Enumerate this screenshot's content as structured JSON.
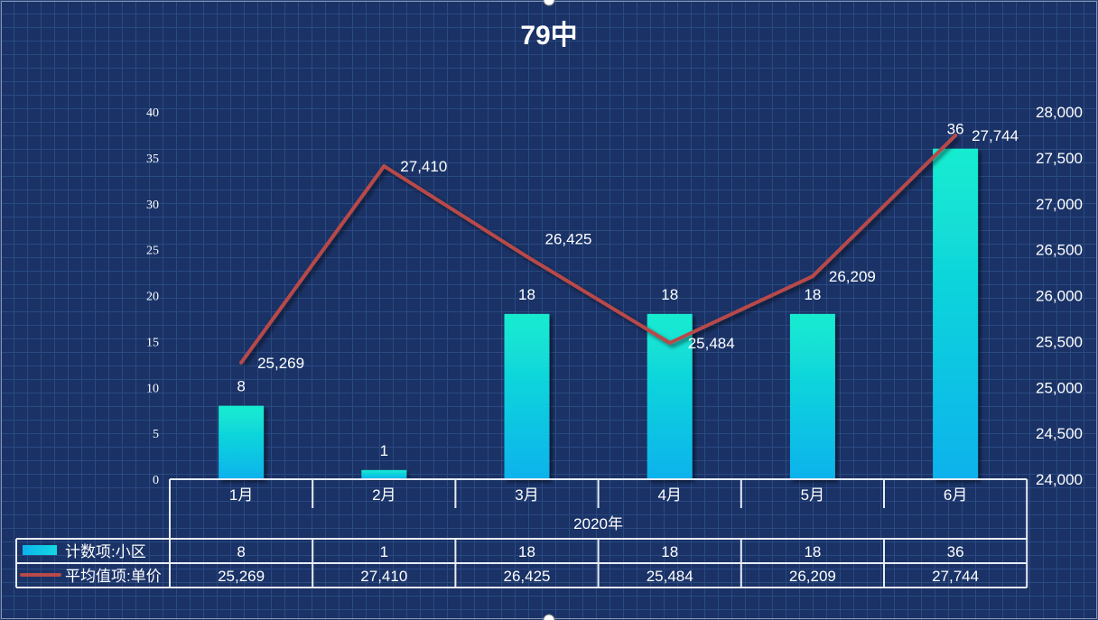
{
  "chart_data": {
    "type": "bar+line",
    "title": "79中",
    "categories": [
      "1月",
      "2月",
      "3月",
      "4月",
      "5月",
      "6月"
    ],
    "category_group": "2020年",
    "series": [
      {
        "name": "计数项:小区",
        "type": "bar",
        "axis": "left",
        "values": [
          8,
          1,
          18,
          18,
          18,
          36
        ],
        "color": "#12c8e0"
      },
      {
        "name": "平均值项:单价",
        "type": "line",
        "axis": "right",
        "values": [
          25269,
          27410,
          26425,
          25484,
          26209,
          27744
        ],
        "color": "#b84a4a"
      }
    ],
    "left_axis": {
      "ylim": [
        0,
        40
      ],
      "ticks": [
        0,
        5,
        10,
        15,
        20,
        25,
        30,
        35,
        40
      ]
    },
    "right_axis": {
      "ylim": [
        24000,
        28000
      ],
      "ticks": [
        24000,
        24500,
        25000,
        25500,
        26000,
        26500,
        27000,
        27500,
        28000
      ]
    },
    "data_table": true,
    "grid": false,
    "legend": "in data table"
  }
}
